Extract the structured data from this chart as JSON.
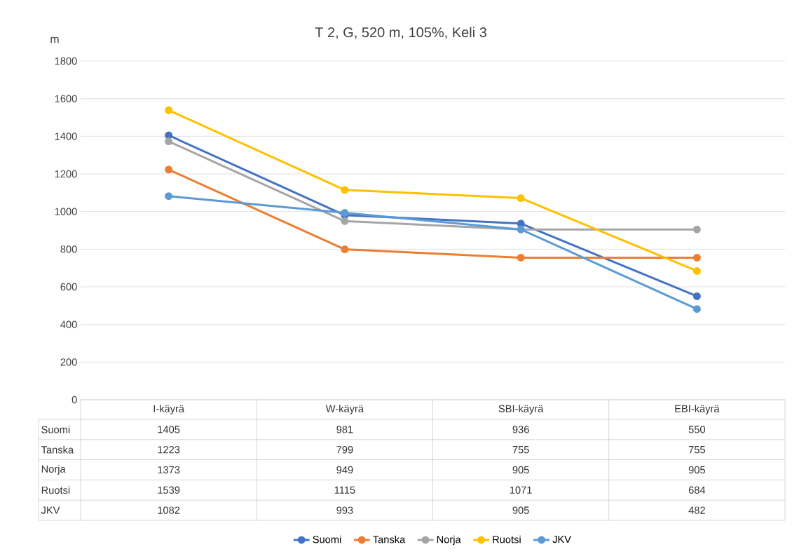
{
  "chart_data": {
    "type": "line",
    "title": "T 2, G, 520 m, 105%, Keli 3",
    "ylabel": "m",
    "categories": [
      "I-käyrä",
      "W-käyrä",
      "SBI-käyrä",
      "EBI-käyrä"
    ],
    "series": [
      {
        "name": "Suomi",
        "color": "#4472c4",
        "values": [
          1405,
          981,
          936,
          550
        ]
      },
      {
        "name": "Tanska",
        "color": "#ed7d31",
        "values": [
          1223,
          799,
          755,
          755
        ]
      },
      {
        "name": "Norja",
        "color": "#a5a5a5",
        "values": [
          1373,
          949,
          905,
          905
        ]
      },
      {
        "name": "Ruotsi",
        "color": "#ffc000",
        "values": [
          1539,
          1115,
          1071,
          684
        ]
      },
      {
        "name": "JKV",
        "color": "#5b9bd5",
        "values": [
          1082,
          993,
          905,
          482
        ]
      }
    ],
    "ylim": [
      0,
      1800
    ],
    "yticks": [
      0,
      200,
      400,
      600,
      800,
      1000,
      1200,
      1400,
      1600,
      1800
    ],
    "grid": "y",
    "legend": "bottom",
    "marker": "circle",
    "line_style": "solid",
    "data_labels": true
  }
}
